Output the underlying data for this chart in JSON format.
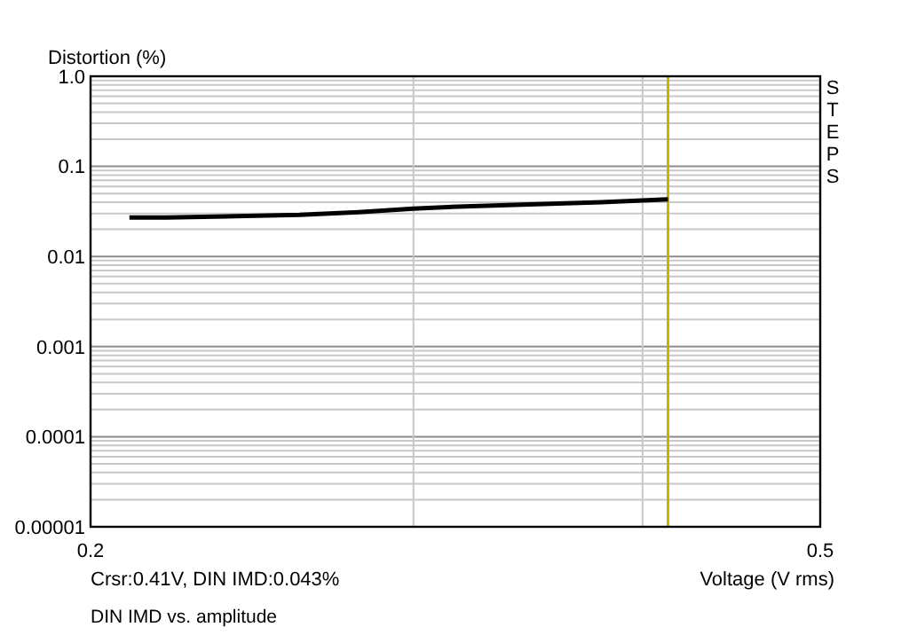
{
  "chart_data": {
    "type": "line",
    "ylabel": "Distortion (%)",
    "xlabel": "Voltage (V rms)",
    "x": [
      0.21,
      0.22,
      0.24,
      0.26,
      0.28,
      0.3,
      0.32,
      0.35,
      0.38,
      0.4,
      0.413
    ],
    "series": [
      {
        "color": "#000000",
        "values": [
          0.027,
          0.027,
          0.028,
          0.029,
          0.031,
          0.034,
          0.036,
          0.038,
          0.04,
          0.042,
          0.043
        ]
      }
    ],
    "log": "xy",
    "xlim": [
      0.2,
      0.5
    ],
    "ylim": [
      1e-05,
      1
    ],
    "xticks": [
      0.2,
      {
        "value": 0.3,
        "label": null
      },
      {
        "value": 0.4,
        "label": null
      },
      0.5
    ],
    "yticks": [
      {
        "value": 1e-05,
        "label": "0.00001"
      },
      {
        "value": 2e-05,
        "label": null
      },
      {
        "value": 3e-05,
        "label": null
      },
      {
        "value": 4e-05,
        "label": null
      },
      {
        "value": 5e-05,
        "label": null
      },
      {
        "value": 6e-05,
        "label": null
      },
      {
        "value": 7e-05,
        "label": null
      },
      {
        "value": 8e-05,
        "label": null
      },
      {
        "value": 9e-05,
        "label": null
      },
      {
        "value": 0.0001,
        "label": "0.0001"
      },
      {
        "value": 0.0002,
        "label": null
      },
      {
        "value": 0.0003,
        "label": null
      },
      {
        "value": 0.0004,
        "label": null
      },
      {
        "value": 0.0005,
        "label": null
      },
      {
        "value": 0.0006,
        "label": null
      },
      {
        "value": 0.0007,
        "label": null
      },
      {
        "value": 0.0008,
        "label": null
      },
      {
        "value": 0.0009,
        "label": null
      },
      {
        "value": 0.001,
        "label": "0.001"
      },
      {
        "value": 0.002,
        "label": null
      },
      {
        "value": 0.003,
        "label": null
      },
      {
        "value": 0.004,
        "label": null
      },
      {
        "value": 0.005,
        "label": null
      },
      {
        "value": 0.006,
        "label": null
      },
      {
        "value": 0.007,
        "label": null
      },
      {
        "value": 0.008,
        "label": null
      },
      {
        "value": 0.009,
        "label": null
      },
      {
        "value": 0.01,
        "label": "0.01"
      },
      {
        "value": 0.02,
        "label": null
      },
      {
        "value": 0.03,
        "label": null
      },
      {
        "value": 0.04,
        "label": null
      },
      {
        "value": 0.05,
        "label": null
      },
      {
        "value": 0.06,
        "label": null
      },
      {
        "value": 0.07,
        "label": null
      },
      {
        "value": 0.08,
        "label": null
      },
      {
        "value": 0.09,
        "label": null
      },
      {
        "value": 0.1,
        "label": "0.1"
      },
      {
        "value": 0.2,
        "label": null
      },
      {
        "value": 0.3,
        "label": null
      },
      {
        "value": 0.4,
        "label": null
      },
      {
        "value": 0.5,
        "label": null
      },
      {
        "value": 0.6,
        "label": null
      },
      {
        "value": 0.7,
        "label": null
      },
      {
        "value": 0.8,
        "label": null
      },
      {
        "value": 0.9,
        "label": null
      },
      {
        "value": 1,
        "label": "1.0"
      }
    ],
    "grid": true,
    "marker": "none",
    "line_style": "solid",
    "ref_lines": [
      {
        "axis": "x",
        "value": 0.413,
        "color": "#c8b400"
      }
    ],
    "annotations": [
      "Crsr:0.41V, DIN IMD:0.043%",
      "DIN IMD vs. amplitude",
      "STEPS"
    ]
  }
}
